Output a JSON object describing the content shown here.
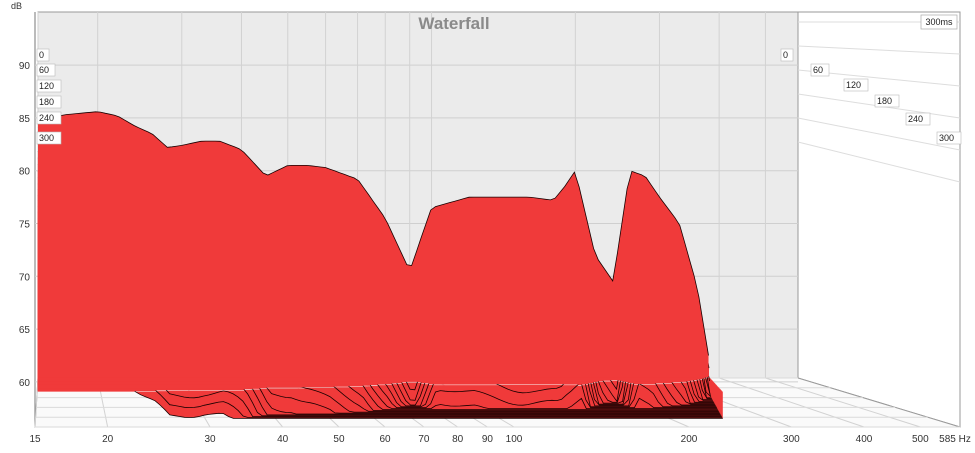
{
  "chart_data": {
    "type": "area",
    "title": "Waterfall",
    "ylabel": "dB",
    "xlabel": "",
    "x_unit_label": "585 Hz",
    "time_window_label": "300ms",
    "x_scale": "log",
    "xlim": [
      15,
      585
    ],
    "ylim": [
      58,
      92
    ],
    "x_ticks": [
      15,
      20,
      30,
      40,
      50,
      60,
      70,
      80,
      90,
      100,
      200,
      300,
      400,
      500
    ],
    "x_tick_labels": [
      "15",
      "20",
      "30",
      "40",
      "50",
      "60",
      "70",
      "80",
      "90",
      "100",
      "200",
      "300",
      "400",
      "500"
    ],
    "y_ticks": [
      60,
      65,
      70,
      75,
      80,
      85,
      90
    ],
    "y_tick_labels": [
      "60",
      "65",
      "70",
      "75",
      "80",
      "85",
      "90"
    ],
    "time_labels": [
      "0",
      "60",
      "120",
      "180",
      "240",
      "300"
    ],
    "grid": true,
    "fill_color": "#f03a3a",
    "line_color": "#1a0000",
    "slices": 30,
    "series": [
      {
        "name": "0",
        "x": [
          15,
          17,
          18,
          20,
          22,
          24,
          26,
          28,
          30,
          33,
          36,
          40,
          45,
          50,
          55,
          60,
          70,
          80,
          90,
          100,
          120,
          140,
          160,
          180,
          190,
          200,
          220,
          240,
          260,
          280,
          300,
          330,
          360,
          380
        ],
        "y": [
          84.5,
          85.3,
          85.4,
          85.6,
          85.2,
          84.2,
          83.5,
          82.2,
          82.4,
          82.8,
          82.8,
          82.0,
          79.5,
          80.5,
          80.5,
          80.3,
          79.2,
          75.5,
          70.5,
          76.5,
          77.5,
          77.5,
          77.5,
          77.2,
          78.5,
          80.0,
          72.0,
          69.5,
          80.0,
          79.5,
          77.5,
          75.0,
          69.0,
          62.5
        ]
      }
    ]
  }
}
